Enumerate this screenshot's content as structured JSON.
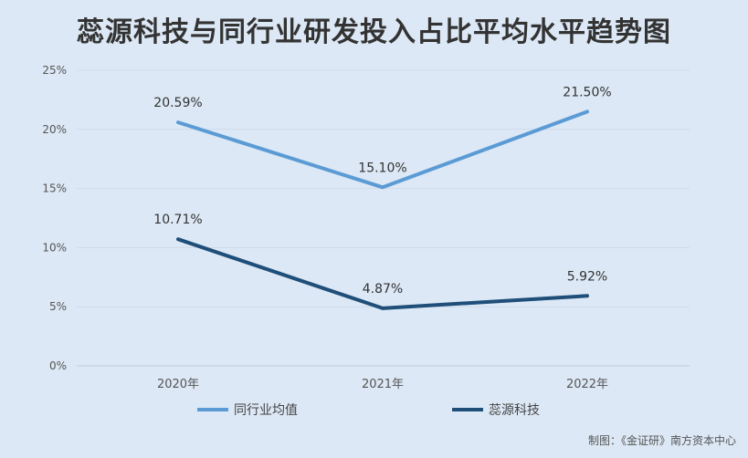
{
  "title": "蕊源科技与同行业研发投入占比平均水平趋势图",
  "credit": "制图：《金证研》南方资本中心",
  "chart_data": {
    "type": "line",
    "title": "蕊源科技与同行业研发投入占比平均水平趋势图",
    "categories": [
      "2020年",
      "2021年",
      "2022年"
    ],
    "y_ticks": [
      "0%",
      "5%",
      "10%",
      "15%",
      "20%",
      "25%"
    ],
    "ylim": [
      0,
      25
    ],
    "grid": "horizontal",
    "legend_position": "bottom",
    "series": [
      {
        "name": "同行业均值",
        "values": [
          20.59,
          15.1,
          21.5
        ],
        "labels": [
          "20.59%",
          "15.10%",
          "21.50%"
        ],
        "color": "#5b9bd5"
      },
      {
        "name": "蕊源科技",
        "values": [
          10.71,
          4.87,
          5.92
        ],
        "labels": [
          "10.71%",
          "4.87%",
          "5.92%"
        ],
        "color": "#1f4e79"
      }
    ]
  }
}
